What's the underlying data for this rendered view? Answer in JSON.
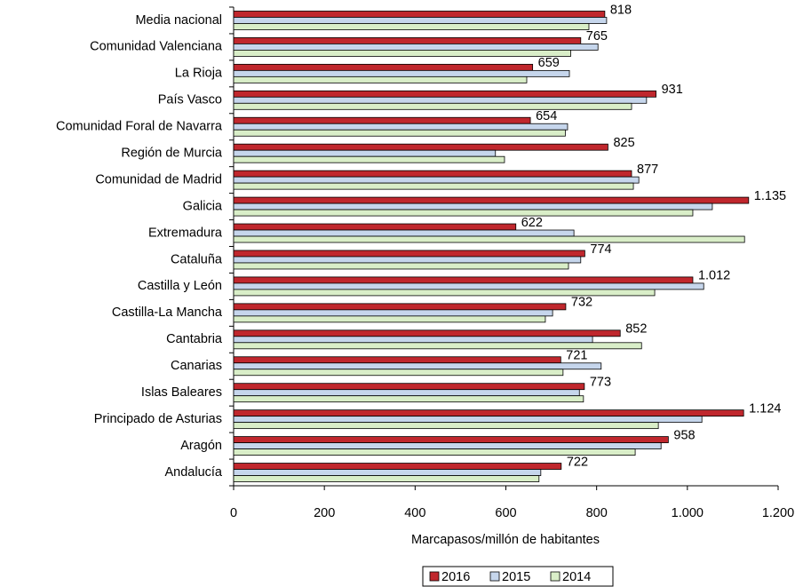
{
  "chart_data": {
    "type": "bar",
    "orientation": "horizontal",
    "x_label": "Marcapasos/millón de habitantes",
    "categories": [
      "Media nacional",
      "Comunidad Valenciana",
      "La Rioja",
      "País Vasco",
      "Comunidad Foral de Navarra",
      "Región de Murcia",
      "Comunidad de Madrid",
      "Galicia",
      "Extremadura",
      "Cataluña",
      "Castilla y León",
      "Castilla-La Mancha",
      "Cantabria",
      "Canarias",
      "Islas Baleares",
      "Principado de Asturias",
      "Aragón",
      "Andalucía"
    ],
    "series": [
      {
        "name": "2016",
        "color": "#c0272d",
        "values": [
          818,
          765,
          659,
          931,
          654,
          825,
          877,
          1135,
          622,
          774,
          1012,
          732,
          852,
          721,
          773,
          1124,
          958,
          722
        ],
        "value_labels": [
          "818",
          "765",
          "659",
          "931",
          "654",
          "825",
          "877",
          "1.135",
          "622",
          "774",
          "1.012",
          "732",
          "852",
          "721",
          "773",
          "1.124",
          "958",
          "722"
        ]
      },
      {
        "name": "2015",
        "color": "#c6d6ec",
        "values": [
          822,
          803,
          740,
          910,
          736,
          577,
          893,
          1055,
          750,
          765,
          1036,
          703,
          791,
          810,
          762,
          1032,
          942,
          677
        ]
      },
      {
        "name": "2014",
        "color": "#d9eec8",
        "values": [
          783,
          743,
          646,
          877,
          731,
          597,
          881,
          1012,
          1126,
          738,
          928,
          687,
          899,
          726,
          771,
          936,
          885,
          673
        ]
      }
    ],
    "xlim": [
      0,
      1200
    ],
    "xticks": [
      0,
      200,
      400,
      600,
      800,
      {
        "value": 1000,
        "label": "1.000"
      },
      {
        "value": 1200,
        "label": "1.200"
      }
    ],
    "legend": "bottom"
  }
}
